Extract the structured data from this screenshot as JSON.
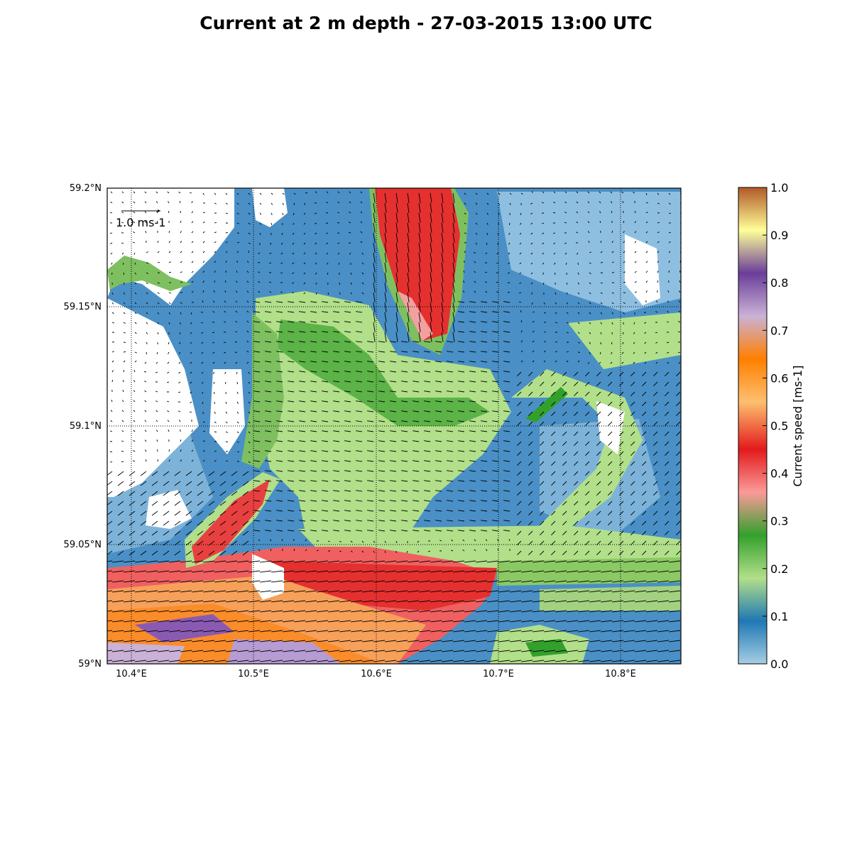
{
  "title": "Current at 2 m depth - 27-03-2015 13:00 UTC",
  "map": {
    "lon_range": [
      10.38,
      10.85
    ],
    "lat_range": [
      59.0,
      59.2
    ],
    "lon_ticks": [
      "10.4°E",
      "10.5°E",
      "10.6°E",
      "10.7°E",
      "10.8°E"
    ],
    "lon_tick_values": [
      10.4,
      10.5,
      10.6,
      10.7,
      10.8
    ],
    "lat_ticks": [
      "59°N",
      "59.05°N",
      "59.1°N",
      "59.15°N",
      "59.2°N"
    ],
    "lat_tick_values": [
      59.0,
      59.05,
      59.1,
      59.15,
      59.2
    ],
    "gridlines": "dotted",
    "land_color": "#ffffff",
    "reference_arrow_label": "1.0 ms-1",
    "reference_arrow_value": 1.0
  },
  "colorbar": {
    "label": "Current speed [ms-1]",
    "ticks": [
      "0.0",
      "0.1",
      "0.2",
      "0.3",
      "0.4",
      "0.5",
      "0.6",
      "0.7",
      "0.8",
      "0.9",
      "1.0"
    ],
    "tick_values": [
      0.0,
      0.1,
      0.2,
      0.3,
      0.4,
      0.5,
      0.6,
      0.7,
      0.8,
      0.9,
      1.0
    ],
    "colors": [
      "#a6cee3",
      "#1f78b4",
      "#b2df8a",
      "#33a02c",
      "#fb9a99",
      "#e31a1c",
      "#fdbf6f",
      "#ff7f00",
      "#cab2d6",
      "#6a3d9a",
      "#ffff99",
      "#b15928"
    ]
  }
}
